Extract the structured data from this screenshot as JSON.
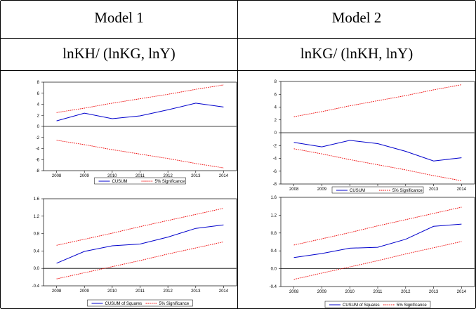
{
  "table": {
    "columns": [
      {
        "title": "Model 1",
        "equation": "lnKH/ (lnKG,  lnY)"
      },
      {
        "title": "Model 2",
        "equation": "lnKG/ (lnKH,  lnY)"
      }
    ]
  },
  "colors": {
    "series": "#0000cc",
    "bounds": "#ee0000",
    "axis": "#000000"
  },
  "chart_data": [
    {
      "id": "m1-cusum",
      "type": "line",
      "categories": [
        "2008",
        "2009",
        "2010",
        "2011",
        "2012",
        "2013",
        "2014"
      ],
      "ylim": [
        -8,
        8
      ],
      "yticks": [
        -8,
        -6,
        -4,
        -2,
        0,
        2,
        4,
        6,
        8
      ],
      "series": [
        {
          "name": "CUSUM",
          "values": [
            1.0,
            2.4,
            1.4,
            1.9,
            3.0,
            4.2,
            3.5
          ]
        },
        {
          "name": "5% Significance",
          "values": [
            2.5,
            3.3,
            4.2,
            5.0,
            5.8,
            6.7,
            7.5
          ]
        },
        {
          "name": "",
          "values": [
            -2.5,
            -3.3,
            -4.2,
            -5.0,
            -5.8,
            -6.7,
            -7.5
          ]
        }
      ]
    },
    {
      "id": "m2-cusum",
      "type": "line",
      "categories": [
        "2008",
        "2009",
        "2010",
        "2011",
        "2012",
        "2013",
        "2014"
      ],
      "ylim": [
        -8,
        8
      ],
      "yticks": [
        -8,
        -6,
        -4,
        -2,
        0,
        2,
        4,
        6,
        8
      ],
      "series": [
        {
          "name": "CUSUM",
          "values": [
            -1.5,
            -2.2,
            -1.2,
            -1.7,
            -2.9,
            -4.4,
            -3.9
          ]
        },
        {
          "name": "5% Significance",
          "values": [
            2.5,
            3.3,
            4.2,
            5.0,
            5.8,
            6.7,
            7.5
          ]
        },
        {
          "name": "",
          "values": [
            -2.5,
            -3.3,
            -4.2,
            -5.0,
            -5.8,
            -6.7,
            -7.5
          ]
        }
      ]
    },
    {
      "id": "m1-cusumsq",
      "type": "line",
      "categories": [
        "2008",
        "2009",
        "2010",
        "2011",
        "2012",
        "2013",
        "2014"
      ],
      "ylim": [
        -0.4,
        1.6
      ],
      "yticks": [
        -0.4,
        0.0,
        0.4,
        0.8,
        1.2,
        1.6
      ],
      "series": [
        {
          "name": "CUSUM of Squares",
          "values": [
            0.12,
            0.39,
            0.52,
            0.56,
            0.72,
            0.92,
            1.0
          ]
        },
        {
          "name": "5% Significance",
          "values": [
            0.53,
            0.67,
            0.81,
            0.96,
            1.1,
            1.24,
            1.38
          ]
        },
        {
          "name": "",
          "values": [
            -0.24,
            -0.1,
            0.04,
            0.18,
            0.33,
            0.47,
            0.61
          ]
        }
      ]
    },
    {
      "id": "m2-cusumsq",
      "type": "line",
      "categories": [
        "2008",
        "2009",
        "2010",
        "2011",
        "2012",
        "2013",
        "2014"
      ],
      "ylim": [
        -0.4,
        1.6
      ],
      "yticks": [
        -0.4,
        0.0,
        0.4,
        0.8,
        1.2,
        1.6
      ],
      "series": [
        {
          "name": "CUSUM of Squares",
          "values": [
            0.25,
            0.34,
            0.46,
            0.48,
            0.66,
            0.95,
            1.0
          ]
        },
        {
          "name": "5% Significance",
          "values": [
            0.53,
            0.67,
            0.81,
            0.96,
            1.1,
            1.24,
            1.38
          ]
        },
        {
          "name": "",
          "values": [
            -0.24,
            -0.1,
            0.04,
            0.18,
            0.33,
            0.47,
            0.61
          ]
        }
      ]
    }
  ]
}
